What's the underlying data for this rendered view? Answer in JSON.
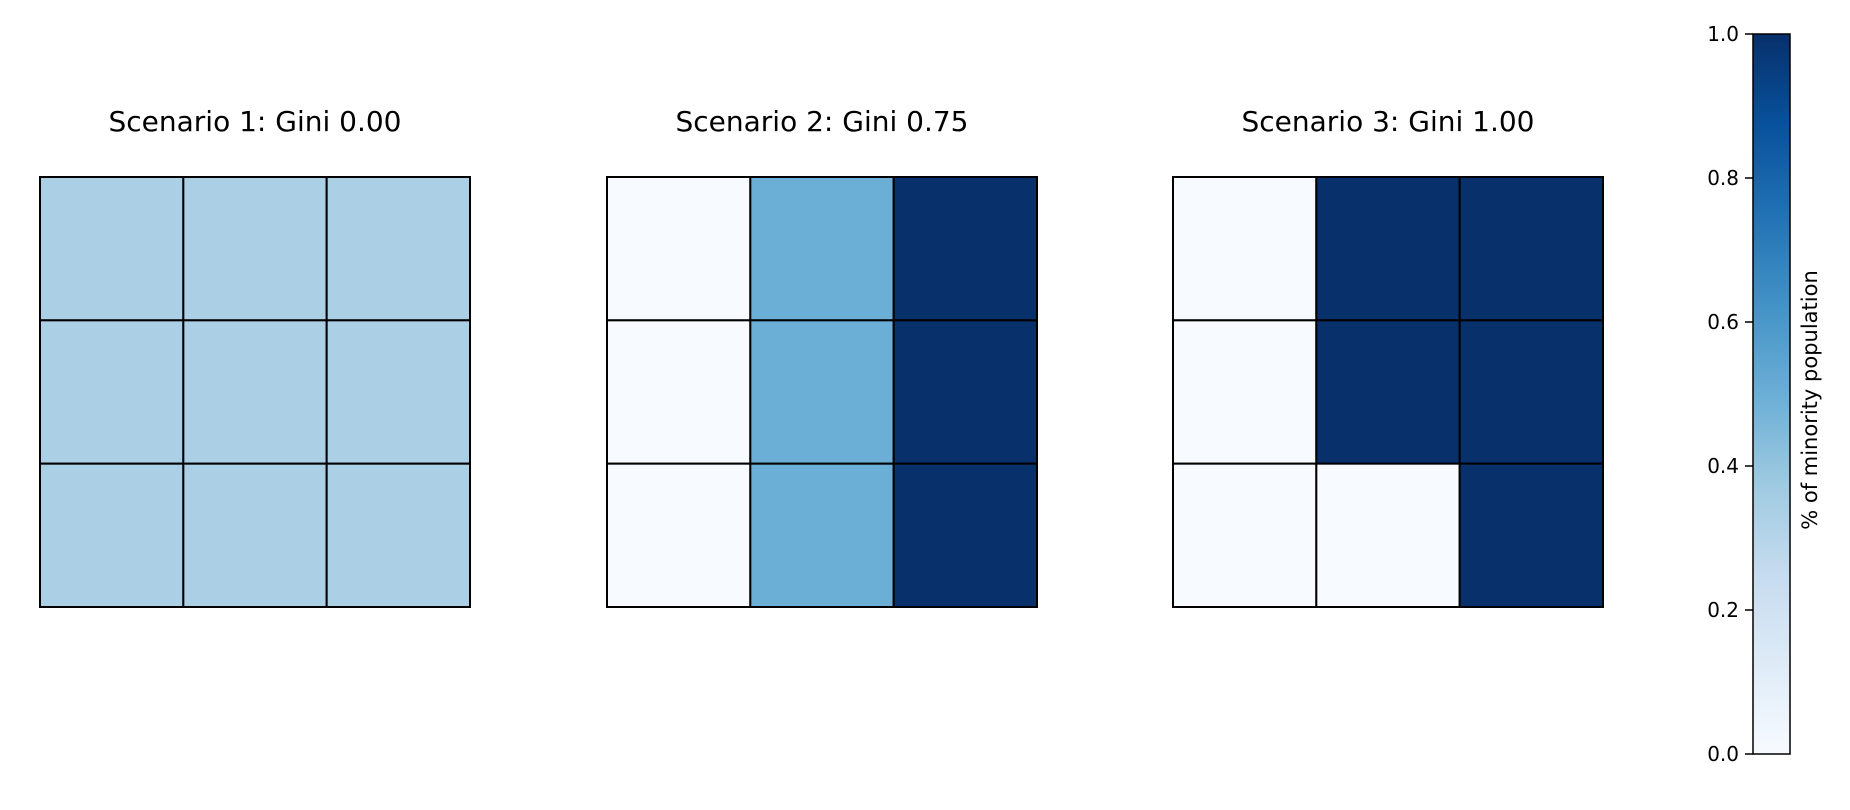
{
  "chart_data": {
    "type": "heatmap",
    "colormap": "Blues",
    "vmin": 0.0,
    "vmax": 1.0,
    "colormap_stops": [
      "#f7fbff",
      "#deebf7",
      "#c6dbef",
      "#9ecae1",
      "#6baed6",
      "#4292c6",
      "#2171b5",
      "#08519c",
      "#08306b"
    ],
    "grid_rows": 3,
    "grid_cols": 3,
    "panels": [
      {
        "title": "Scenario 1: Gini 0.00",
        "values": [
          [
            0.3333,
            0.3333,
            0.3333
          ],
          [
            0.3333,
            0.3333,
            0.3333
          ],
          [
            0.3333,
            0.3333,
            0.3333
          ]
        ]
      },
      {
        "title": "Scenario 2: Gini 0.75",
        "values": [
          [
            0.0,
            0.5,
            1.0
          ],
          [
            0.0,
            0.5,
            1.0
          ],
          [
            0.0,
            0.5,
            1.0
          ]
        ]
      },
      {
        "title": "Scenario 3: Gini 1.00",
        "values": [
          [
            0.0,
            1.0,
            1.0
          ],
          [
            0.0,
            1.0,
            1.0
          ],
          [
            0.0,
            0.0,
            1.0
          ]
        ]
      }
    ],
    "colorbar": {
      "label": "% of minority population",
      "ticks": [
        "0.0",
        "0.2",
        "0.4",
        "0.6",
        "0.8",
        "1.0"
      ],
      "tick_values": [
        0.0,
        0.2,
        0.4,
        0.6,
        0.8,
        1.0
      ]
    }
  }
}
